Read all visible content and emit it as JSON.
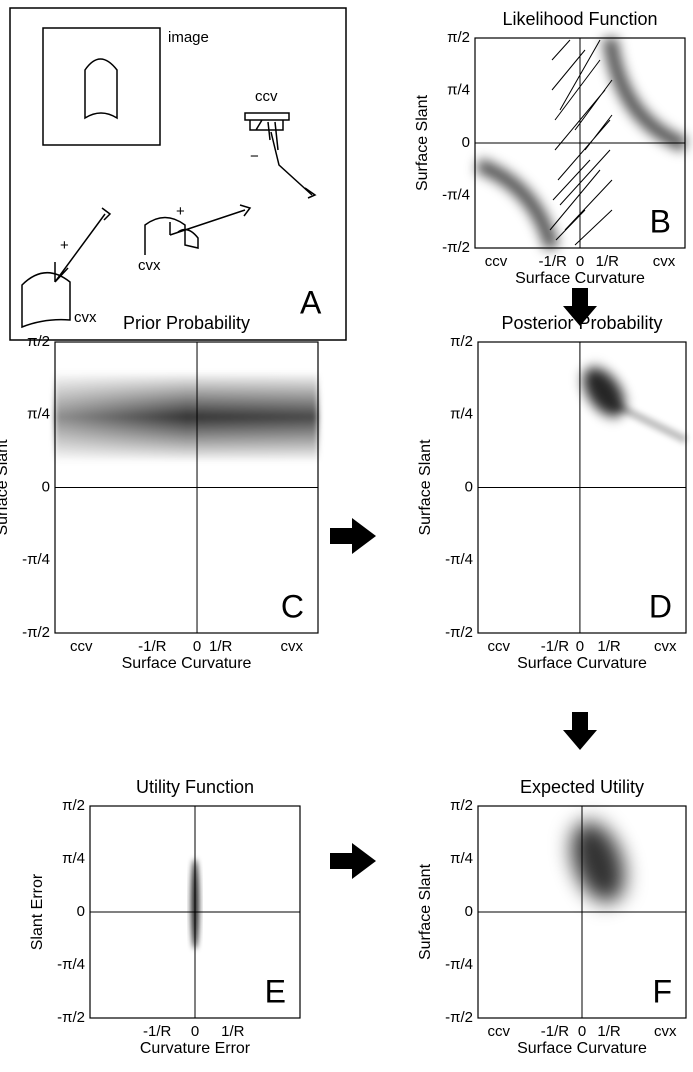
{
  "panel_a": {
    "letter": "A",
    "image_label": "image",
    "ccv_label": "ccv",
    "cvx_label_middle": "cvx",
    "cvx_label_left": "cvx",
    "plus_middle": "+",
    "plus_left": "+",
    "minus": "−"
  },
  "panels": [
    {
      "title": "Likelihood Function",
      "letter": "B",
      "y_label": "Surface Slant",
      "x_label": "Surface Curvature",
      "y_ticks": [
        "π/2",
        "π/4",
        "0",
        "-π/4",
        "-π/2"
      ],
      "x_ticks": [
        "ccv",
        "-1/R",
        "0",
        "1/R",
        "cvx"
      ]
    },
    {
      "title": "Prior Probability",
      "letter": "C",
      "y_label": "Surface Slant",
      "x_label": "Surface Curvature",
      "y_ticks": [
        "π/2",
        "π/4",
        "0",
        "-π/4",
        "-π/2"
      ],
      "x_ticks": [
        "ccv",
        "-1/R",
        "0",
        "1/R",
        "cvx"
      ]
    },
    {
      "title": "Posterior Probability",
      "letter": "D",
      "y_label": "Surface Slant",
      "x_label": "Surface Curvature",
      "y_ticks": [
        "π/2",
        "π/4",
        "0",
        "-π/4",
        "-π/2"
      ],
      "x_ticks": [
        "ccv",
        "-1/R",
        "0",
        "1/R",
        "cvx"
      ]
    },
    {
      "title": "Utility Function",
      "letter": "E",
      "y_label": "Slant Error",
      "x_label": "Curvature Error",
      "y_ticks": [
        "π/2",
        "π/4",
        "0",
        "-π/4",
        "-π/2"
      ],
      "x_ticks": [
        "-1/R",
        "0",
        "1/R"
      ]
    },
    {
      "title": "Expected Utility",
      "letter": "F",
      "y_label": "Surface Slant",
      "x_label": "Surface Curvature",
      "y_ticks": [
        "π/2",
        "π/4",
        "0",
        "-π/4",
        "-π/2"
      ],
      "x_ticks": [
        "ccv",
        "-1/R",
        "0",
        "1/R",
        "cvx"
      ]
    }
  ]
}
